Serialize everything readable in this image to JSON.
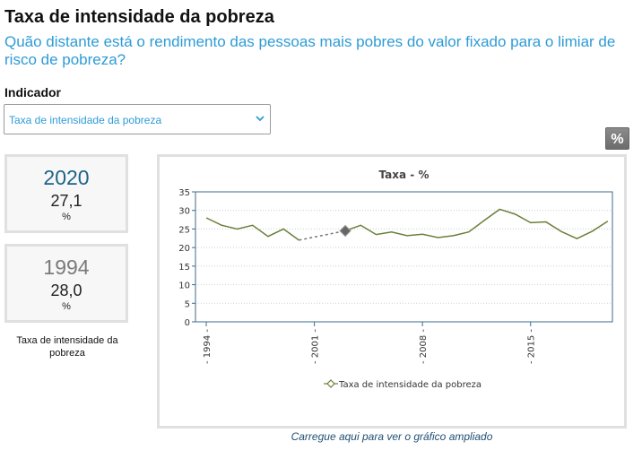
{
  "header": {
    "title": "Taxa de intensidade da pobreza",
    "subtitle": "Quão distante está o rendimento das pessoas mais pobres do valor fixado para o limiar de risco de pobreza?"
  },
  "indicator": {
    "label": "Indicador",
    "selected": "Taxa de intensidade da pobreza"
  },
  "unit_button_label": "%",
  "cards": {
    "latest": {
      "year": "2020",
      "value": "27,1",
      "unit": "%"
    },
    "first": {
      "year": "1994",
      "value": "28,0",
      "unit": "%"
    },
    "caption": "Taxa de intensidade da pobreza"
  },
  "enlarge_link": "Carregue aqui para ver o gráfico ampliado",
  "colors": {
    "line": "#6b7f3a",
    "accent": "#2e9bd6",
    "axis": "#3d6b8c"
  },
  "chart_data": {
    "type": "line",
    "title": "Taxa - %",
    "xlabel": "",
    "ylabel": "",
    "ylim": [
      0,
      35
    ],
    "yticks": [
      0,
      5,
      10,
      15,
      20,
      25,
      30,
      35
    ],
    "xticks": [
      "1994",
      "2001",
      "2008",
      "2015"
    ],
    "grid": "horizontal-dotted",
    "legend_position": "bottom",
    "series": [
      {
        "name": "Taxa de intensidade da pobreza",
        "x": [
          1994,
          1995,
          1996,
          1997,
          1998,
          1999,
          2000,
          2001,
          2002,
          2003,
          2004,
          2005,
          2006,
          2007,
          2008,
          2009,
          2010,
          2011,
          2012,
          2013,
          2014,
          2015,
          2016,
          2017,
          2018,
          2019,
          2020
        ],
        "y": [
          28.0,
          26.0,
          25.0,
          26.0,
          23.0,
          25.0,
          22.0,
          null,
          null,
          24.5,
          26.0,
          23.5,
          24.2,
          23.2,
          23.6,
          22.7,
          23.2,
          24.2,
          27.3,
          30.3,
          29.0,
          26.7,
          26.9,
          24.3,
          22.4,
          24.4,
          27.1
        ]
      }
    ],
    "break_segment": {
      "from_year": 2000,
      "to_year": 2003
    },
    "highlight_point": {
      "x": 2003,
      "y": 24.5
    }
  }
}
